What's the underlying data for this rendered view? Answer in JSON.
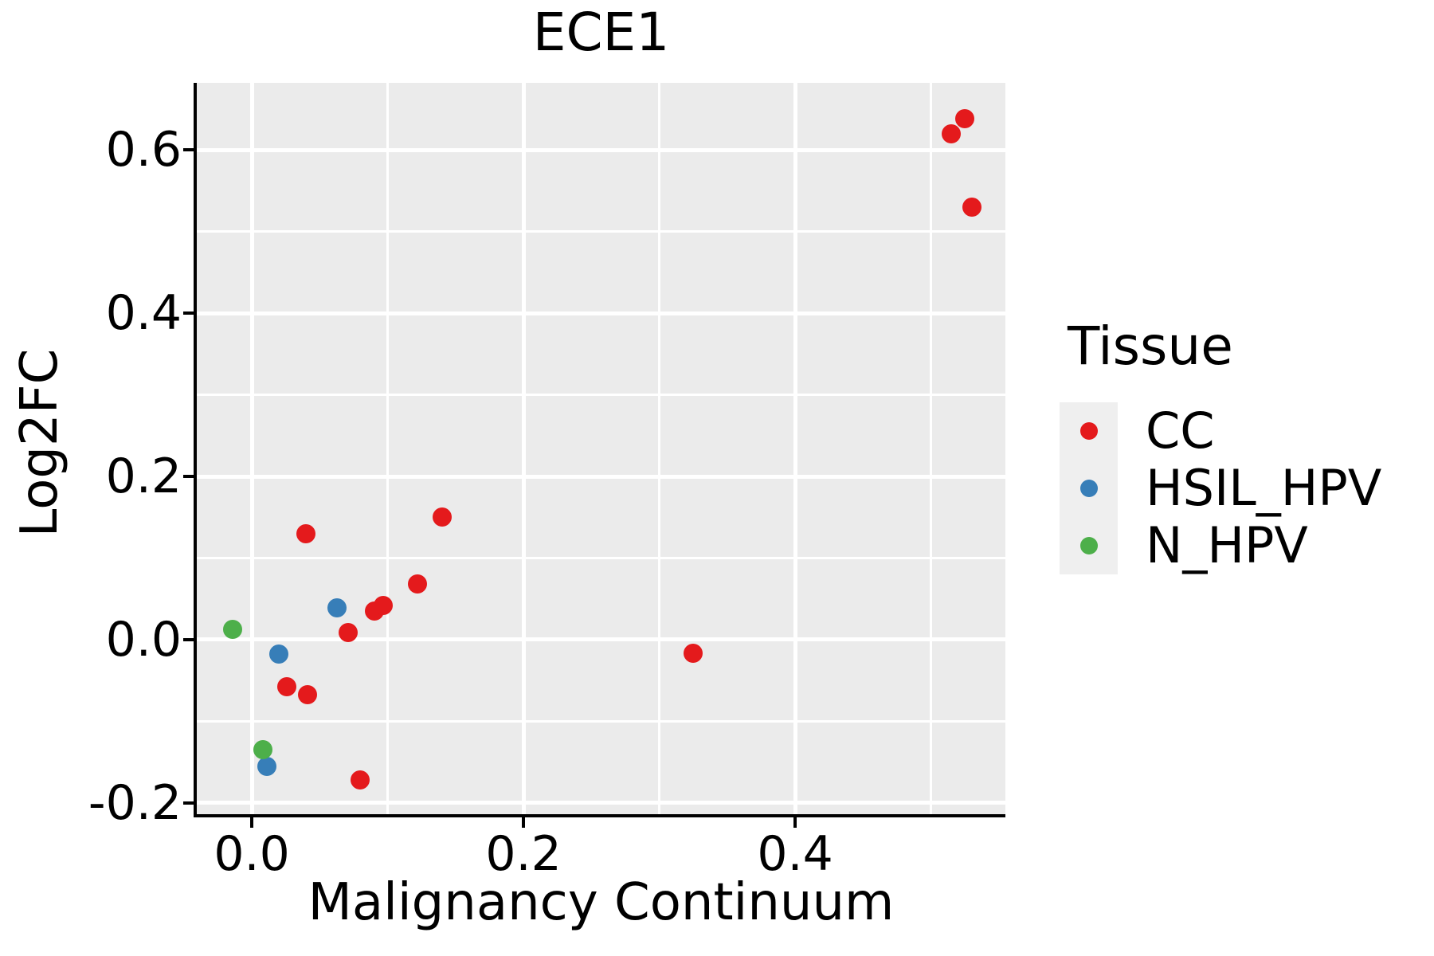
{
  "chart_data": {
    "type": "scatter",
    "title": "ECE1",
    "xlabel": "Malignancy Continuum",
    "ylabel": "Log2FC",
    "legend_title": "Tissue",
    "legend_position": "right",
    "grid": "major and minor gridlines, white on gray panel",
    "panel_bg": "#EBEBEB",
    "grid_color": "#FFFFFF",
    "axis_color": "#000000",
    "xlim": [
      -0.0405,
      0.5548
    ],
    "ylim": [
      -0.2137,
      0.682
    ],
    "x_ticks": {
      "values": [
        0.0,
        0.2,
        0.4
      ],
      "labels": [
        "0.0",
        "0.2",
        "0.4"
      ]
    },
    "y_ticks": {
      "values": [
        -0.2,
        0.0,
        0.2,
        0.4,
        0.6
      ],
      "labels": [
        "-0.2",
        "0.0",
        "0.2",
        "0.4",
        "0.6"
      ]
    },
    "x_minor": [
      0.1,
      0.3,
      0.5
    ],
    "y_minor": [
      -0.1,
      0.1,
      0.3,
      0.5
    ],
    "series": [
      {
        "name": "CC",
        "color": "#E41A1C",
        "points": [
          [
            0.04,
            0.13
          ],
          [
            0.14,
            0.15
          ],
          [
            0.122,
            0.068
          ],
          [
            0.09,
            0.035
          ],
          [
            0.097,
            0.042
          ],
          [
            0.071,
            0.009
          ],
          [
            0.026,
            -0.058
          ],
          [
            0.041,
            -0.067
          ],
          [
            0.08,
            -0.172
          ],
          [
            0.325,
            -0.017
          ],
          [
            0.515,
            0.62
          ],
          [
            0.525,
            0.638
          ],
          [
            0.53,
            0.53
          ]
        ]
      },
      {
        "name": "HSIL_HPV",
        "color": "#377EB8",
        "points": [
          [
            0.063,
            0.039
          ],
          [
            0.02,
            -0.018
          ],
          [
            0.011,
            -0.155
          ]
        ]
      },
      {
        "name": "N_HPV",
        "color": "#4DAF4A",
        "points": [
          [
            -0.014,
            0.013
          ],
          [
            0.008,
            -0.135
          ]
        ]
      }
    ]
  }
}
